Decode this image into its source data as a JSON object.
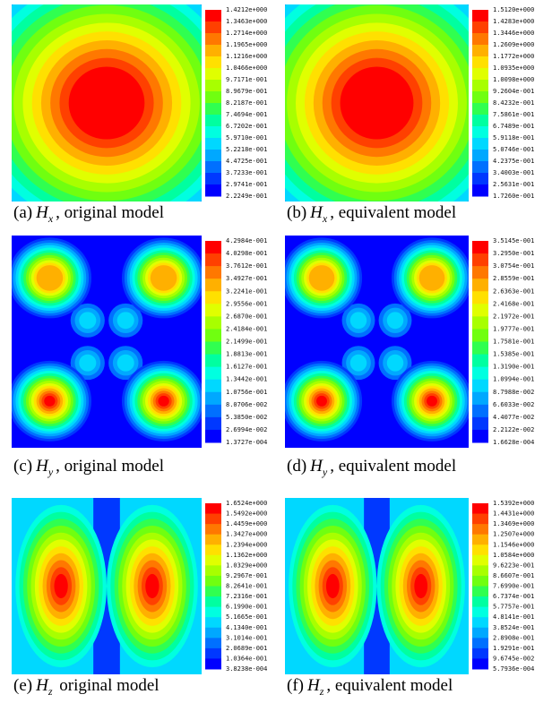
{
  "panels": [
    {
      "caption": {
        "label": "(a)",
        "symbol": "H",
        "subscript": "x",
        "text": ", original model"
      },
      "colorbar": [
        "1.4212e+000",
        "1.3463e+000",
        "1.2714e+000",
        "1.1965e+000",
        "1.1216e+000",
        "1.0466e+000",
        "9.7171e-001",
        "8.9679e-001",
        "8.2187e-001",
        "7.4694e-001",
        "6.7202e-001",
        "5.9710e-001",
        "5.2218e-001",
        "4.4725e-001",
        "3.7233e-001",
        "2.9741e-001",
        "2.2249e-001"
      ]
    },
    {
      "caption": {
        "label": "(b)",
        "symbol": "H",
        "subscript": "x",
        "text": ", equivalent model"
      },
      "colorbar": [
        "1.5120e+000",
        "1.4283e+000",
        "1.3446e+000",
        "1.2609e+000",
        "1.1772e+000",
        "1.0935e+000",
        "1.0098e+000",
        "9.2604e-001",
        "8.4232e-001",
        "7.5861e-001",
        "6.7489e-001",
        "5.9118e-001",
        "5.0746e-001",
        "4.2375e-001",
        "3.4003e-001",
        "2.5631e-001",
        "1.7260e-001"
      ]
    },
    {
      "caption": {
        "label": "(c)",
        "symbol": "H",
        "subscript": "y",
        "text": ", original model"
      },
      "colorbar": [
        "4.2984e-001",
        "4.0298e-001",
        "3.7612e-001",
        "3.4927e-001",
        "3.2241e-001",
        "2.9556e-001",
        "2.6870e-001",
        "2.4184e-001",
        "2.1499e-001",
        "1.8813e-001",
        "1.6127e-001",
        "1.3442e-001",
        "1.0756e-001",
        "8.0706e-002",
        "5.3850e-002",
        "2.6994e-002",
        "1.3727e-004"
      ]
    },
    {
      "caption": {
        "label": "(d)",
        "symbol": "H",
        "subscript": "y",
        "text": ", equivalent model"
      },
      "colorbar": [
        "3.5145e-001",
        "3.2950e-001",
        "3.0754e-001",
        "2.8559e-001",
        "2.6363e-001",
        "2.4168e-001",
        "2.1972e-001",
        "1.9777e-001",
        "1.7581e-001",
        "1.5385e-001",
        "1.3190e-001",
        "1.0994e-001",
        "8.7988e-002",
        "6.6033e-002",
        "4.4077e-002",
        "2.2122e-002",
        "1.6628e-004"
      ]
    },
    {
      "caption": {
        "label": "(e)",
        "symbol": "H",
        "subscript": "z",
        "text": " original model"
      },
      "colorbar": [
        "1.6524e+000",
        "1.5492e+000",
        "1.4459e+000",
        "1.3427e+000",
        "1.2394e+000",
        "1.1362e+000",
        "1.0329e+000",
        "9.2967e-001",
        "8.2641e-001",
        "7.2316e-001",
        "6.1990e-001",
        "5.1665e-001",
        "4.1340e-001",
        "3.1014e-001",
        "2.0689e-001",
        "1.0364e-001",
        "3.8238e-004"
      ]
    },
    {
      "caption": {
        "label": "(f)",
        "symbol": "H",
        "subscript": "z",
        "text": ", equivalent model"
      },
      "colorbar": [
        "1.5392e+000",
        "1.4431e+000",
        "1.3469e+000",
        "1.2507e+000",
        "1.1546e+000",
        "1.0584e+000",
        "9.6223e-001",
        "8.6607e-001",
        "7.6990e-001",
        "6.7374e-001",
        "5.7757e-001",
        "4.8141e-001",
        "3.8524e-001",
        "2.8908e-001",
        "1.9291e-001",
        "9.6745e-002",
        "5.7936e-004"
      ]
    }
  ]
}
